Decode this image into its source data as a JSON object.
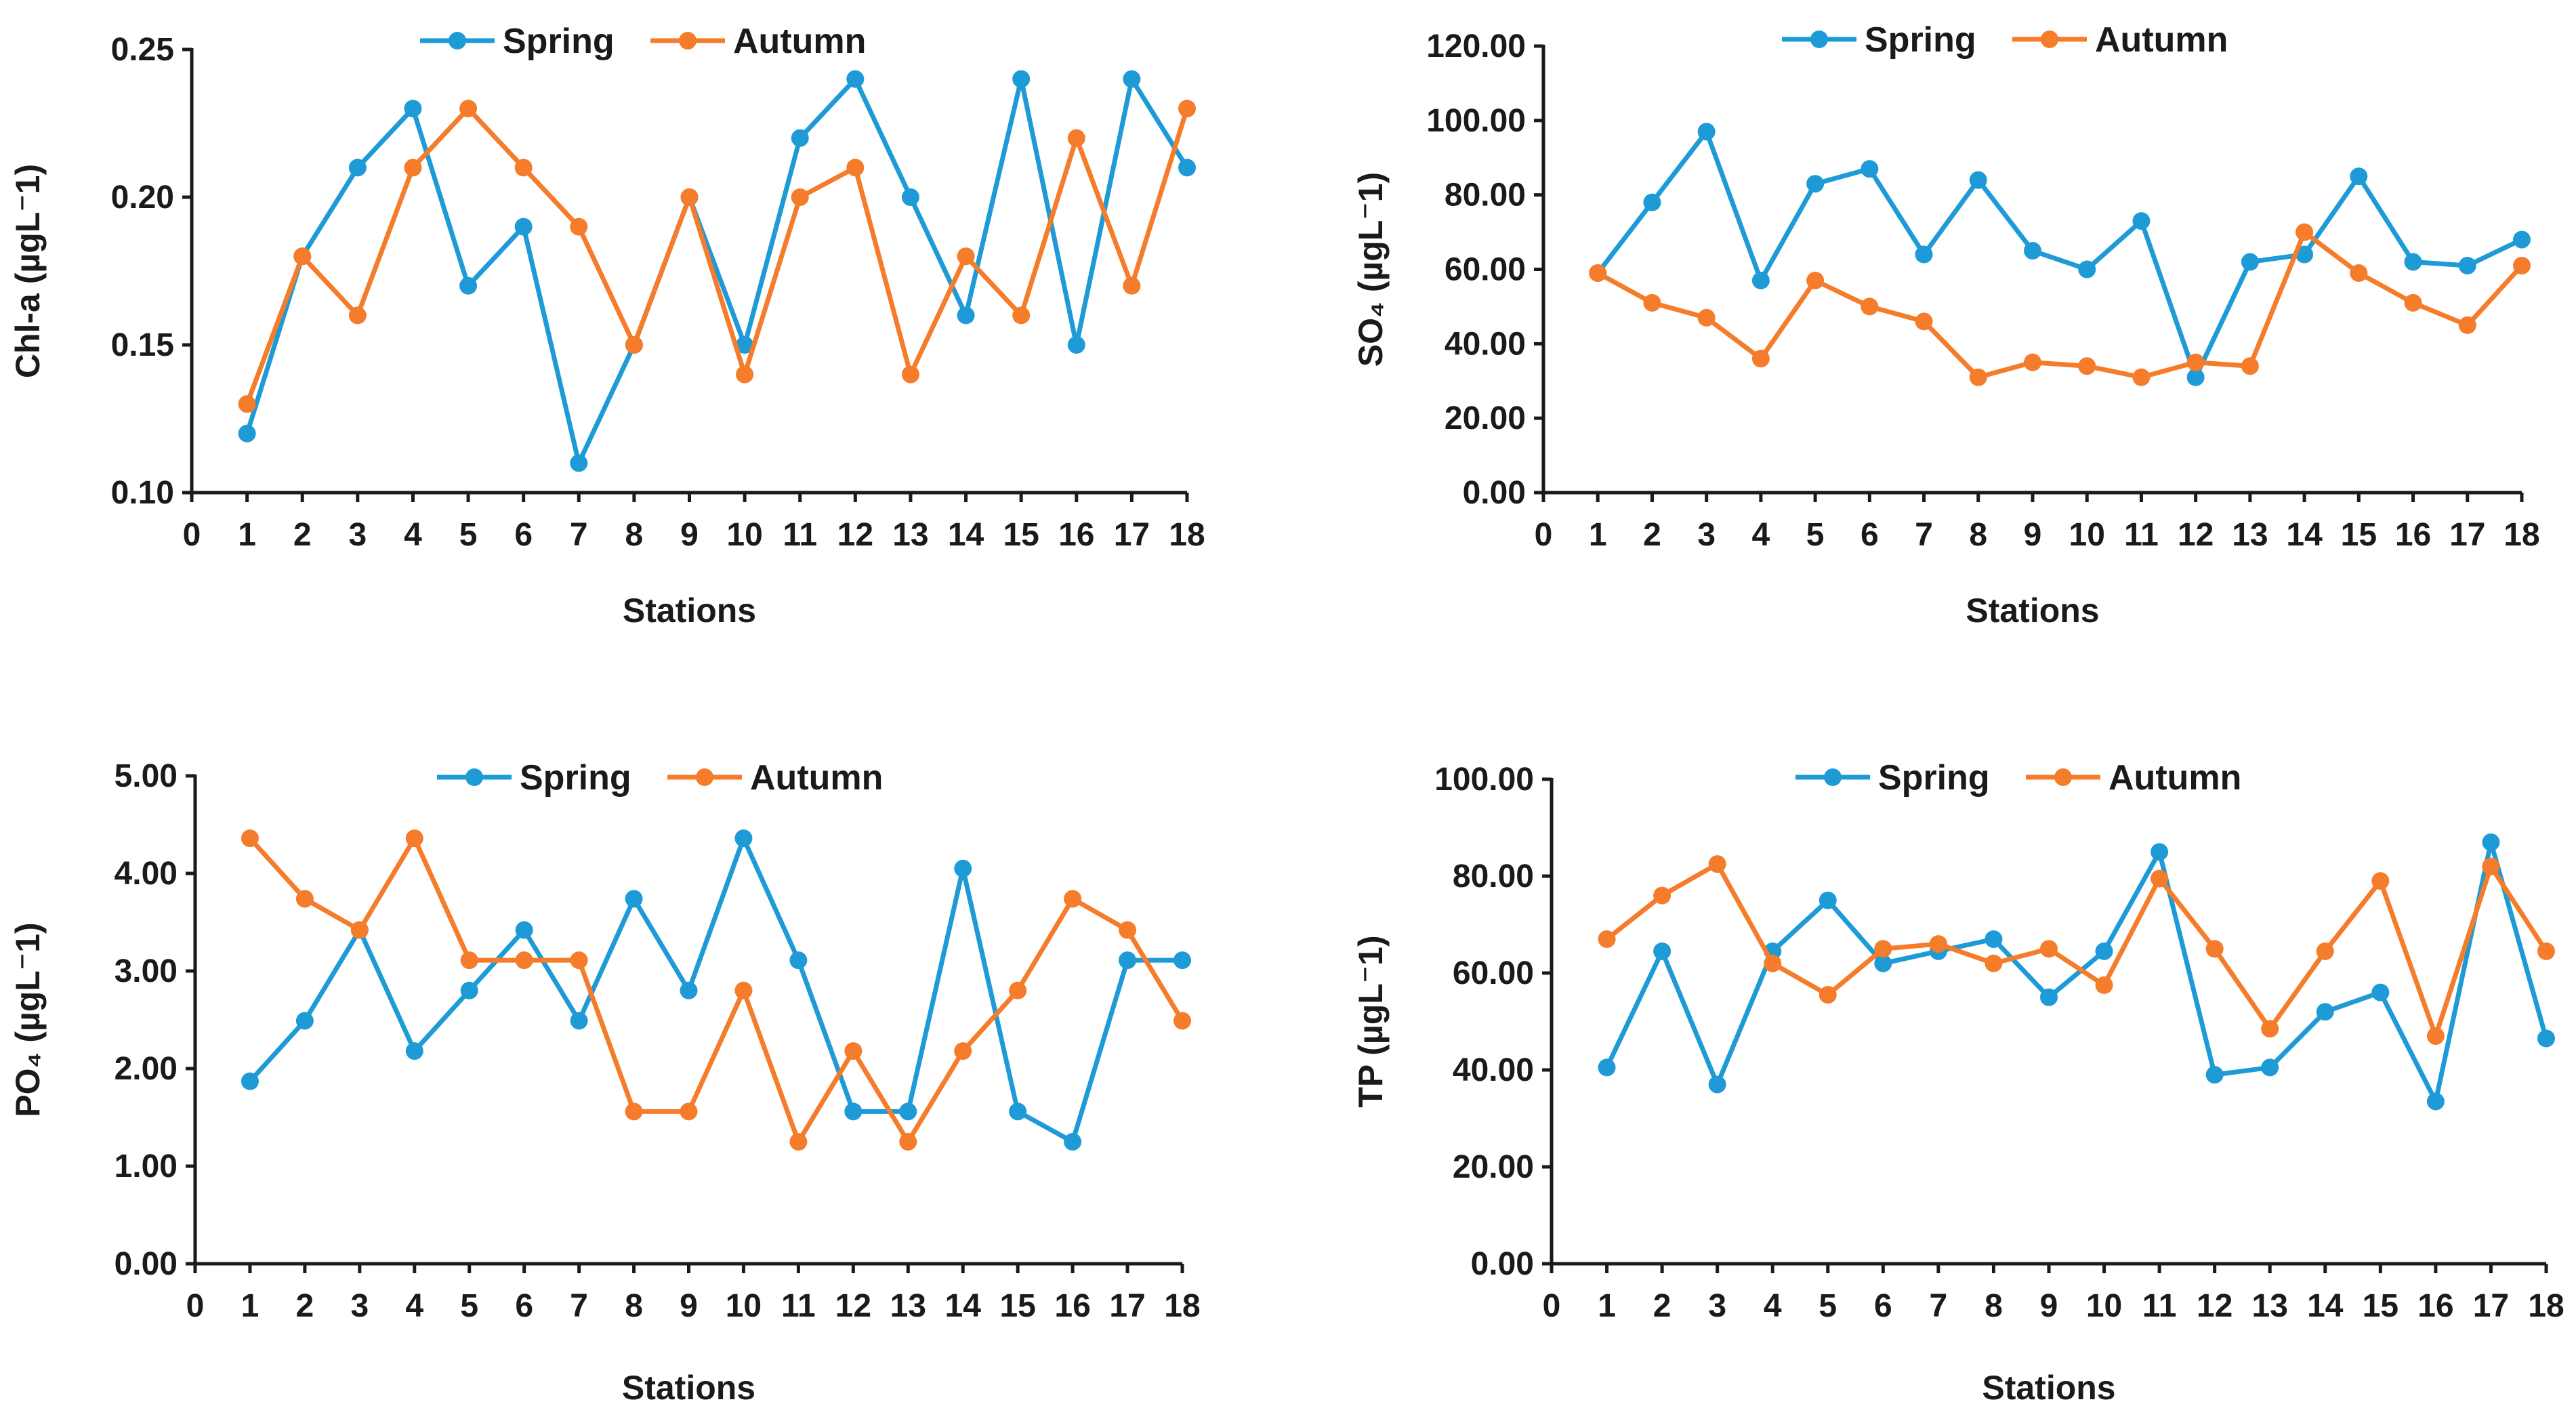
{
  "colors": {
    "spring": "#1e9bd7",
    "autumn": "#f47c2a",
    "axis": "#1a1a1a"
  },
  "chart_data": [
    {
      "id": "chl",
      "type": "line",
      "title": "",
      "xlabel": "Stations",
      "ylabel": "Chl-a (µgL⁻1)",
      "ylim": [
        0.1,
        0.25
      ],
      "xlim": [
        0,
        18
      ],
      "yticks": [
        "0.10",
        "0.15",
        "0.20",
        "0.25"
      ],
      "ytick_values": [
        0.1,
        0.15,
        0.2,
        0.25
      ],
      "xticks": [
        "0",
        "1",
        "2",
        "3",
        "4",
        "5",
        "6",
        "7",
        "8",
        "9",
        "10",
        "11",
        "12",
        "13",
        "14",
        "15",
        "16",
        "17",
        "18"
      ],
      "legend": [
        "Spring",
        "Autumn"
      ],
      "legend_position": "top-center",
      "x": [
        1,
        2,
        3,
        4,
        5,
        6,
        7,
        8,
        9,
        10,
        11,
        12,
        13,
        14,
        15,
        16,
        17,
        18
      ],
      "series": [
        {
          "name": "Spring",
          "values": [
            0.12,
            0.18,
            0.21,
            0.23,
            0.17,
            0.19,
            0.11,
            0.15,
            0.2,
            0.15,
            0.22,
            0.24,
            0.2,
            0.16,
            0.24,
            0.15,
            0.24,
            0.21
          ]
        },
        {
          "name": "Autumn",
          "values": [
            0.13,
            0.18,
            0.16,
            0.21,
            0.23,
            0.21,
            0.19,
            0.15,
            0.2,
            0.14,
            0.2,
            0.21,
            0.14,
            0.18,
            0.16,
            0.22,
            0.17,
            0.23
          ]
        }
      ]
    },
    {
      "id": "so4",
      "type": "line",
      "title": "",
      "xlabel": "Stations",
      "ylabel": "SO₄ (µgL⁻1)",
      "ylim": [
        0,
        120
      ],
      "xlim": [
        0,
        18
      ],
      "yticks": [
        "0.00",
        "20.00",
        "40.00",
        "60.00",
        "80.00",
        "100.00",
        "120.00"
      ],
      "ytick_values": [
        0,
        20,
        40,
        60,
        80,
        100,
        120
      ],
      "xticks": [
        "0",
        "1",
        "2",
        "3",
        "4",
        "5",
        "6",
        "7",
        "8",
        "9",
        "10",
        "11",
        "12",
        "13",
        "14",
        "15",
        "16",
        "17",
        "18"
      ],
      "legend": [
        "Spring",
        "Autumn"
      ],
      "legend_position": "top-center",
      "x": [
        1,
        2,
        3,
        4,
        5,
        6,
        7,
        8,
        9,
        10,
        11,
        12,
        13,
        14,
        15,
        16,
        17,
        18
      ],
      "series": [
        {
          "name": "Spring",
          "values": [
            59,
            78,
            97,
            57,
            83,
            87,
            64,
            84,
            65,
            60,
            73,
            31,
            62,
            64,
            85,
            62,
            61,
            68
          ]
        },
        {
          "name": "Autumn",
          "values": [
            59,
            51,
            47,
            36,
            57,
            50,
            46,
            31,
            35,
            34,
            31,
            35,
            34,
            70,
            59,
            51,
            45,
            61
          ]
        }
      ]
    },
    {
      "id": "po4",
      "type": "line",
      "title": "",
      "xlabel": "Stations",
      "ylabel": "PO₄ (µgL⁻1)",
      "ylim": [
        0,
        5
      ],
      "xlim": [
        0,
        18
      ],
      "yticks": [
        "0.00",
        "1.00",
        "2.00",
        "3.00",
        "4.00",
        "5.00"
      ],
      "ytick_values": [
        0,
        1,
        2,
        3,
        4,
        5
      ],
      "xticks": [
        "0",
        "1",
        "2",
        "3",
        "4",
        "5",
        "6",
        "7",
        "8",
        "9",
        "10",
        "11",
        "12",
        "13",
        "14",
        "15",
        "16",
        "17",
        "18"
      ],
      "legend": [
        "Spring",
        "Autumn"
      ],
      "legend_position": "top-center",
      "x": [
        1,
        2,
        3,
        4,
        5,
        6,
        7,
        8,
        9,
        10,
        11,
        12,
        13,
        14,
        15,
        16,
        17,
        18
      ],
      "series": [
        {
          "name": "Spring",
          "values": [
            1.87,
            2.49,
            3.42,
            2.18,
            2.8,
            3.42,
            2.49,
            3.74,
            2.8,
            4.36,
            3.11,
            1.56,
            1.56,
            4.05,
            1.56,
            1.25,
            3.11,
            3.11
          ]
        },
        {
          "name": "Autumn",
          "values": [
            4.36,
            3.74,
            3.42,
            4.36,
            3.11,
            3.11,
            3.11,
            1.56,
            1.56,
            2.8,
            1.25,
            2.18,
            1.25,
            2.18,
            2.8,
            3.74,
            3.42,
            2.49
          ]
        }
      ]
    },
    {
      "id": "tp",
      "type": "line",
      "title": "",
      "xlabel": "Stations",
      "ylabel": "TP (µgL⁻1)",
      "ylim": [
        0,
        100
      ],
      "xlim": [
        0,
        18
      ],
      "yticks": [
        "0.00",
        "20.00",
        "40.00",
        "60.00",
        "80.00",
        "100.00"
      ],
      "ytick_values": [
        0,
        20,
        40,
        60,
        80,
        100
      ],
      "xticks": [
        "0",
        "1",
        "2",
        "3",
        "4",
        "5",
        "6",
        "7",
        "8",
        "9",
        "10",
        "11",
        "12",
        "13",
        "14",
        "15",
        "16",
        "17",
        "18"
      ],
      "legend": [
        "Spring",
        "Autumn"
      ],
      "legend_position": "top-center",
      "x": [
        1,
        2,
        3,
        4,
        5,
        6,
        7,
        8,
        9,
        10,
        11,
        12,
        13,
        14,
        15,
        16,
        17,
        18
      ],
      "series": [
        {
          "name": "Spring",
          "values": [
            40.5,
            64.5,
            37,
            64.5,
            75,
            62,
            64.5,
            67,
            55,
            64.5,
            85,
            39,
            40.5,
            52,
            56,
            33.5,
            87,
            46.5
          ]
        },
        {
          "name": "Autumn",
          "values": [
            67,
            76,
            82.5,
            62,
            55.5,
            65,
            66,
            62,
            65,
            57.5,
            79.5,
            65,
            48.5,
            64.5,
            79,
            47,
            82,
            64.5
          ]
        }
      ]
    }
  ]
}
